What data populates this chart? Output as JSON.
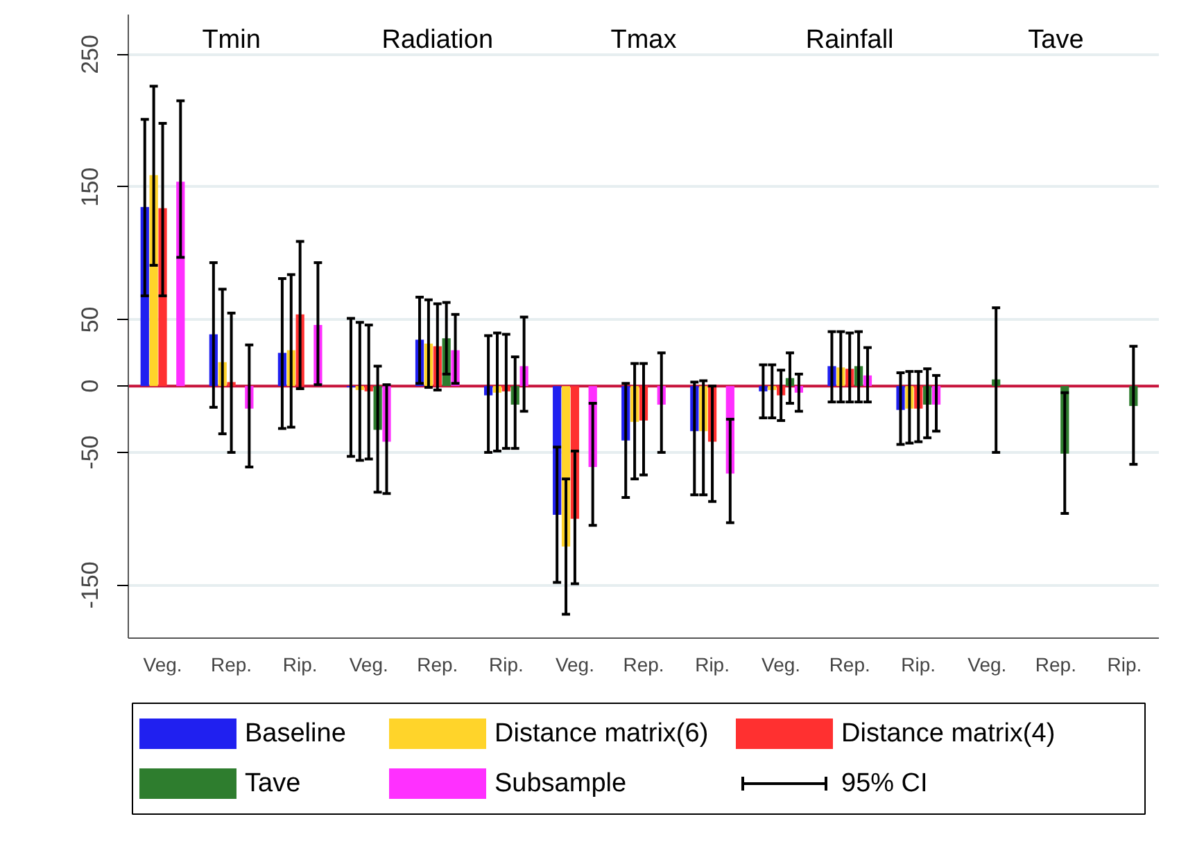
{
  "chart_data": {
    "type": "bar",
    "categories": [
      "Veg.",
      "Rep.",
      "Rip.",
      "Veg.",
      "Rep.",
      "Rip.",
      "Veg.",
      "Rep.",
      "Rip.",
      "Veg.",
      "Rep.",
      "Rip.",
      "Veg.",
      "Rep.",
      "Rip."
    ],
    "ylim": [
      -190,
      280
    ],
    "yticks": [
      250,
      150,
      50,
      0,
      -50,
      -150
    ],
    "grid": "y",
    "legend": "bottom",
    "annotations": [
      "Tmin",
      "Radiation",
      "Tmax",
      "Rainfall",
      "Tave",
      "95% CI"
    ],
    "ref_lines": [
      {
        "axis": "y",
        "value": 0,
        "color": "#c8143c"
      }
    ],
    "series": [
      {
        "name": "Baseline",
        "color": "#2020f0",
        "values": [
          135,
          39,
          25,
          -1,
          35,
          -7,
          -97,
          -41,
          -34,
          -4,
          15,
          -18,
          null,
          null,
          null
        ],
        "errors": [
          [
            68,
            201
          ],
          [
            -16,
            93
          ],
          [
            -32,
            81
          ],
          [
            -53,
            51
          ],
          [
            2,
            67
          ],
          [
            -50,
            38
          ],
          [
            -148,
            -46
          ],
          [
            -84,
            2
          ],
          [
            -82,
            3
          ],
          [
            -24,
            16
          ],
          [
            -12,
            41
          ],
          [
            -44,
            10
          ],
          null,
          null,
          null
        ]
      },
      {
        "name": "Distance matrix(6)",
        "color": "#ffd42a",
        "values": [
          159,
          18,
          27,
          -3,
          32,
          -5,
          -121,
          -27,
          -34,
          -3,
          14,
          -17,
          null,
          null,
          null
        ],
        "errors": [
          [
            91,
            226
          ],
          [
            -36,
            73
          ],
          [
            -31,
            84
          ],
          [
            -56,
            48
          ],
          [
            -1,
            65
          ],
          [
            -49,
            40
          ],
          [
            -172,
            -70
          ],
          [
            -70,
            17
          ],
          [
            -82,
            4
          ],
          [
            -24,
            16
          ],
          [
            -12,
            41
          ],
          [
            -43,
            11
          ],
          null,
          null,
          null
        ]
      },
      {
        "name": "Distance matrix(4)",
        "color": "#ff3030",
        "values": [
          134,
          3,
          54,
          -4,
          30,
          -4,
          -100,
          -26,
          -42,
          -7,
          13,
          -17,
          null,
          null,
          null
        ],
        "errors": [
          [
            68,
            198
          ],
          [
            -50,
            55
          ],
          [
            -2,
            109
          ],
          [
            -55,
            46
          ],
          [
            -3,
            62
          ],
          [
            -47,
            39
          ],
          [
            -149,
            -49
          ],
          [
            -67,
            17
          ],
          [
            -87,
            0
          ],
          [
            -26,
            12
          ],
          [
            -12,
            40
          ],
          [
            -42,
            11
          ],
          null,
          null,
          null
        ]
      },
      {
        "name": "Tave",
        "color": "#2e7d2e",
        "values": [
          null,
          null,
          null,
          -33,
          36,
          -14,
          null,
          null,
          null,
          6,
          15,
          -14,
          5,
          -51,
          -15
        ],
        "errors": [
          null,
          null,
          null,
          [
            -80,
            15
          ],
          [
            9,
            63
          ],
          [
            -47,
            22
          ],
          null,
          null,
          null,
          [
            -13,
            25
          ],
          [
            -12,
            41
          ],
          [
            -39,
            13
          ],
          [
            -50,
            59
          ],
          [
            -96,
            -5
          ],
          [
            -59,
            30
          ]
        ]
      },
      {
        "name": "Subsample",
        "color": "#ff30ff",
        "values": [
          154,
          -17,
          46,
          -42,
          27,
          15,
          -61,
          -14,
          -66,
          -5,
          8,
          -14,
          null,
          null,
          null
        ],
        "errors": [
          [
            97,
            215
          ],
          [
            -61,
            31
          ],
          [
            1,
            93
          ],
          [
            -81,
            1
          ],
          [
            2,
            54
          ],
          [
            -19,
            52
          ],
          [
            -105,
            -13
          ],
          [
            -50,
            25
          ],
          [
            -103,
            -25
          ],
          [
            -19,
            9
          ],
          [
            -12,
            29
          ],
          [
            -34,
            8
          ],
          null,
          null,
          null
        ]
      }
    ]
  }
}
